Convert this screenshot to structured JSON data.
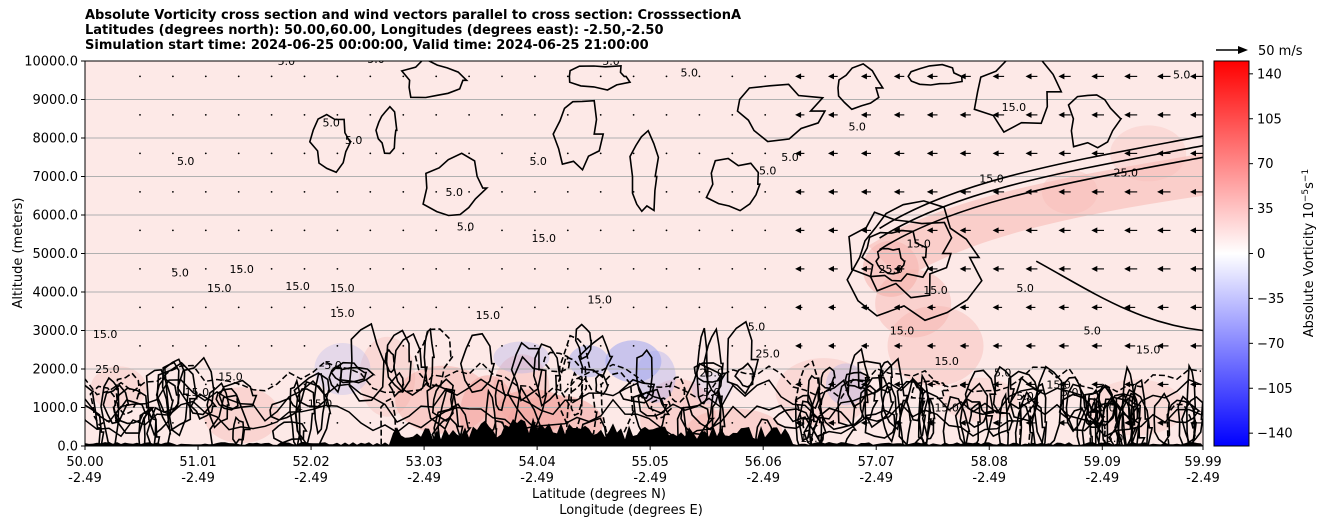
{
  "title_lines": [
    "Absolute Vorticity cross section and wind vectors parallel to cross section: CrosssectionA",
    "Latitudes (degrees north): 50.00,60.00, Longitudes (degrees east): -2.50,-2.50",
    "Simulation start time: 2024-06-25 00:00:00, Valid time: 2024-06-25 21:00:00"
  ],
  "chart_data": {
    "type": "heatmap",
    "xlabel_lines": [
      "Latitude (degrees N)",
      "Longitude (degrees E)"
    ],
    "ylabel": "Altitude (meters)",
    "x_range": [
      50.0,
      59.99
    ],
    "y_range": [
      0,
      10000
    ],
    "x_ticks": [
      {
        "lat": "50.00",
        "lon": "-2.49",
        "v": 50.0
      },
      {
        "lat": "51.01",
        "lon": "-2.49",
        "v": 51.01
      },
      {
        "lat": "52.02",
        "lon": "-2.49",
        "v": 52.02
      },
      {
        "lat": "53.03",
        "lon": "-2.49",
        "v": 53.03
      },
      {
        "lat": "54.04",
        "lon": "-2.49",
        "v": 54.04
      },
      {
        "lat": "55.05",
        "lon": "-2.49",
        "v": 55.05
      },
      {
        "lat": "56.06",
        "lon": "-2.49",
        "v": 56.06
      },
      {
        "lat": "57.07",
        "lon": "-2.49",
        "v": 57.07
      },
      {
        "lat": "58.08",
        "lon": "-2.49",
        "v": 58.08
      },
      {
        "lat": "59.09",
        "lon": "-2.49",
        "v": 59.09
      },
      {
        "lat": "59.99",
        "lon": "-2.49",
        "v": 59.99
      }
    ],
    "y_ticks": [
      0,
      1000,
      2000,
      3000,
      4000,
      5000,
      6000,
      7000,
      8000,
      9000,
      10000
    ],
    "y_tick_labels": [
      "0.0",
      "1000.0",
      "2000.0",
      "3000.0",
      "4000.0",
      "5000.0",
      "6000.0",
      "7000.0",
      "8000.0",
      "9000.0",
      "10000.0"
    ],
    "grid_y": true,
    "colorbar": {
      "label": "Absolute Vorticity 10$^{-5}$s$^{-1}$",
      "label_main": "Absolute Vorticity 10",
      "label_sup1": "−5",
      "label_mid": "s",
      "label_sup2": "−1",
      "range": [
        -150,
        150
      ],
      "ticks": [
        140,
        105,
        70,
        35,
        0,
        -35,
        -70,
        -105,
        -140
      ],
      "tick_labels": [
        "140",
        "105",
        "70",
        "35",
        "0",
        "−35",
        "−70",
        "−105",
        "−140"
      ],
      "colormap": "bwr",
      "low_color": "#0000ff",
      "mid_color": "#ffffff",
      "high_color": "#ff0000"
    },
    "quiver_key": {
      "label": "50 m/s",
      "value": 50
    },
    "contour_labels": [
      {
        "t": "5.0",
        "x": 50.85,
        "y": 4400
      },
      {
        "t": "15.0",
        "x": 50.18,
        "y": 2800
      },
      {
        "t": "25.0",
        "x": 50.2,
        "y": 1900
      },
      {
        "t": "15.0",
        "x": 51.4,
        "y": 4500
      },
      {
        "t": "15.0",
        "x": 51.2,
        "y": 4000
      },
      {
        "t": "15.0",
        "x": 51.9,
        "y": 4050
      },
      {
        "t": "15.0",
        "x": 52.3,
        "y": 4000
      },
      {
        "t": "15.0",
        "x": 52.3,
        "y": 3350
      },
      {
        "t": "15.0",
        "x": 51.3,
        "y": 1700
      },
      {
        "t": "15.0",
        "x": 51.0,
        "y": 1300
      },
      {
        "t": "5.0",
        "x": 50.9,
        "y": 7300
      },
      {
        "t": "5.0",
        "x": 51.8,
        "y": 9900
      },
      {
        "t": "5.0",
        "x": 52.6,
        "y": 9950
      },
      {
        "t": "5.0",
        "x": 52.2,
        "y": 8300
      },
      {
        "t": "5.0",
        "x": 52.4,
        "y": 7850
      },
      {
        "t": "5.0",
        "x": 53.3,
        "y": 6500
      },
      {
        "t": "5.0",
        "x": 53.4,
        "y": 5600
      },
      {
        "t": "5.0",
        "x": 54.05,
        "y": 7300
      },
      {
        "t": "15.0",
        "x": 54.1,
        "y": 5300
      },
      {
        "t": "15.0",
        "x": 54.6,
        "y": 3700
      },
      {
        "t": "15.0",
        "x": 53.6,
        "y": 3300
      },
      {
        "t": "5.0",
        "x": 54.7,
        "y": 9900
      },
      {
        "t": "5.0",
        "x": 55.4,
        "y": 9600
      },
      {
        "t": "5.0",
        "x": 56.3,
        "y": 7400
      },
      {
        "t": "5.0",
        "x": 56.1,
        "y": 7050
      },
      {
        "t": "15.0",
        "x": 57.6,
        "y": 3950
      },
      {
        "t": "25.0",
        "x": 57.2,
        "y": 4500
      },
      {
        "t": "15.0",
        "x": 57.45,
        "y": 5150
      },
      {
        "t": "15.0",
        "x": 58.1,
        "y": 6850
      },
      {
        "t": "15.0",
        "x": 58.3,
        "y": 8700
      },
      {
        "t": "25.0",
        "x": 59.3,
        "y": 7000
      },
      {
        "t": "5.0",
        "x": 59.8,
        "y": 9550
      },
      {
        "t": "5.0",
        "x": 56.0,
        "y": 3000
      },
      {
        "t": "5.0",
        "x": 56.9,
        "y": 8200
      },
      {
        "t": "15.0",
        "x": 59.1,
        "y": 900
      },
      {
        "t": "15.0",
        "x": 58.7,
        "y": 1500
      },
      {
        "t": "5.0",
        "x": 58.4,
        "y": 1200
      },
      {
        "t": "5.0",
        "x": 58.4,
        "y": 4000
      },
      {
        "t": "5.0",
        "x": 59.0,
        "y": 2900
      },
      {
        "t": "15.0",
        "x": 59.5,
        "y": 2400
      },
      {
        "t": "5.0",
        "x": 58.8,
        "y": 1300
      },
      {
        "t": "25.0",
        "x": 56.1,
        "y": 2300
      },
      {
        "t": "15.0",
        "x": 57.7,
        "y": 2100
      },
      {
        "t": "5.0",
        "x": 58.2,
        "y": 1800
      },
      {
        "t": "15.0",
        "x": 57.3,
        "y": 2900
      },
      {
        "t": "25.0",
        "x": 55.6,
        "y": 1800
      },
      {
        "t": "-5.0",
        "x": 52.2,
        "y": 2000
      },
      {
        "t": "15.0",
        "x": 52.1,
        "y": 1000
      },
      {
        "t": "5.0",
        "x": 55.6,
        "y": 1300
      },
      {
        "t": "15.0",
        "x": 57.7,
        "y": 900
      },
      {
        "t": "5.0",
        "x": 59.2,
        "y": 100
      },
      {
        "t": "15.0",
        "x": 56.5,
        "y": 100
      }
    ]
  }
}
